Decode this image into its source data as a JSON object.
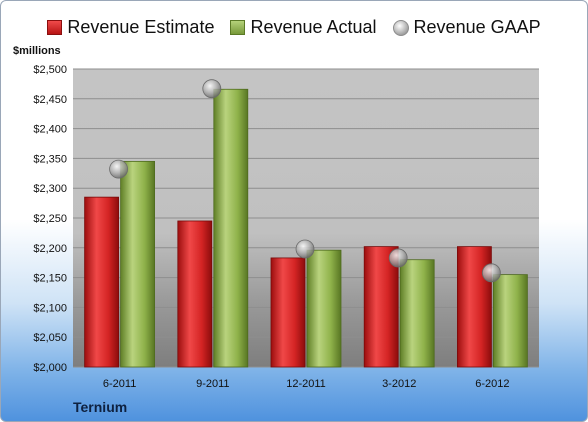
{
  "chart_data": {
    "type": "bar",
    "categories": [
      "6-2011",
      "9-2011",
      "12-2011",
      "3-2012",
      "6-2012"
    ],
    "series": [
      {
        "name": "Revenue Estimate",
        "values": [
          2285,
          2245,
          2183,
          2202,
          2202
        ],
        "color": "#d42424"
      },
      {
        "name": "Revenue Actual",
        "values": [
          2345,
          2466,
          2196,
          2180,
          2155
        ],
        "color": "#8fb24a"
      },
      {
        "name": "Revenue GAAP",
        "values": [
          2332,
          2467,
          2198,
          2183,
          2158
        ],
        "color": "#b8b8b8",
        "marker": "circle"
      }
    ],
    "ylabel": "$millions",
    "ylim": [
      2000,
      2500
    ],
    "yticks": [
      "$2,000",
      "$2,050",
      "$2,100",
      "$2,150",
      "$2,200",
      "$2,250",
      "$2,300",
      "$2,350",
      "$2,400",
      "$2,450",
      "$2,500"
    ],
    "grid": true,
    "legend": "top"
  },
  "brand": "Ternium",
  "legend_items": [
    "Revenue Estimate",
    "Revenue Actual",
    "Revenue GAAP"
  ]
}
